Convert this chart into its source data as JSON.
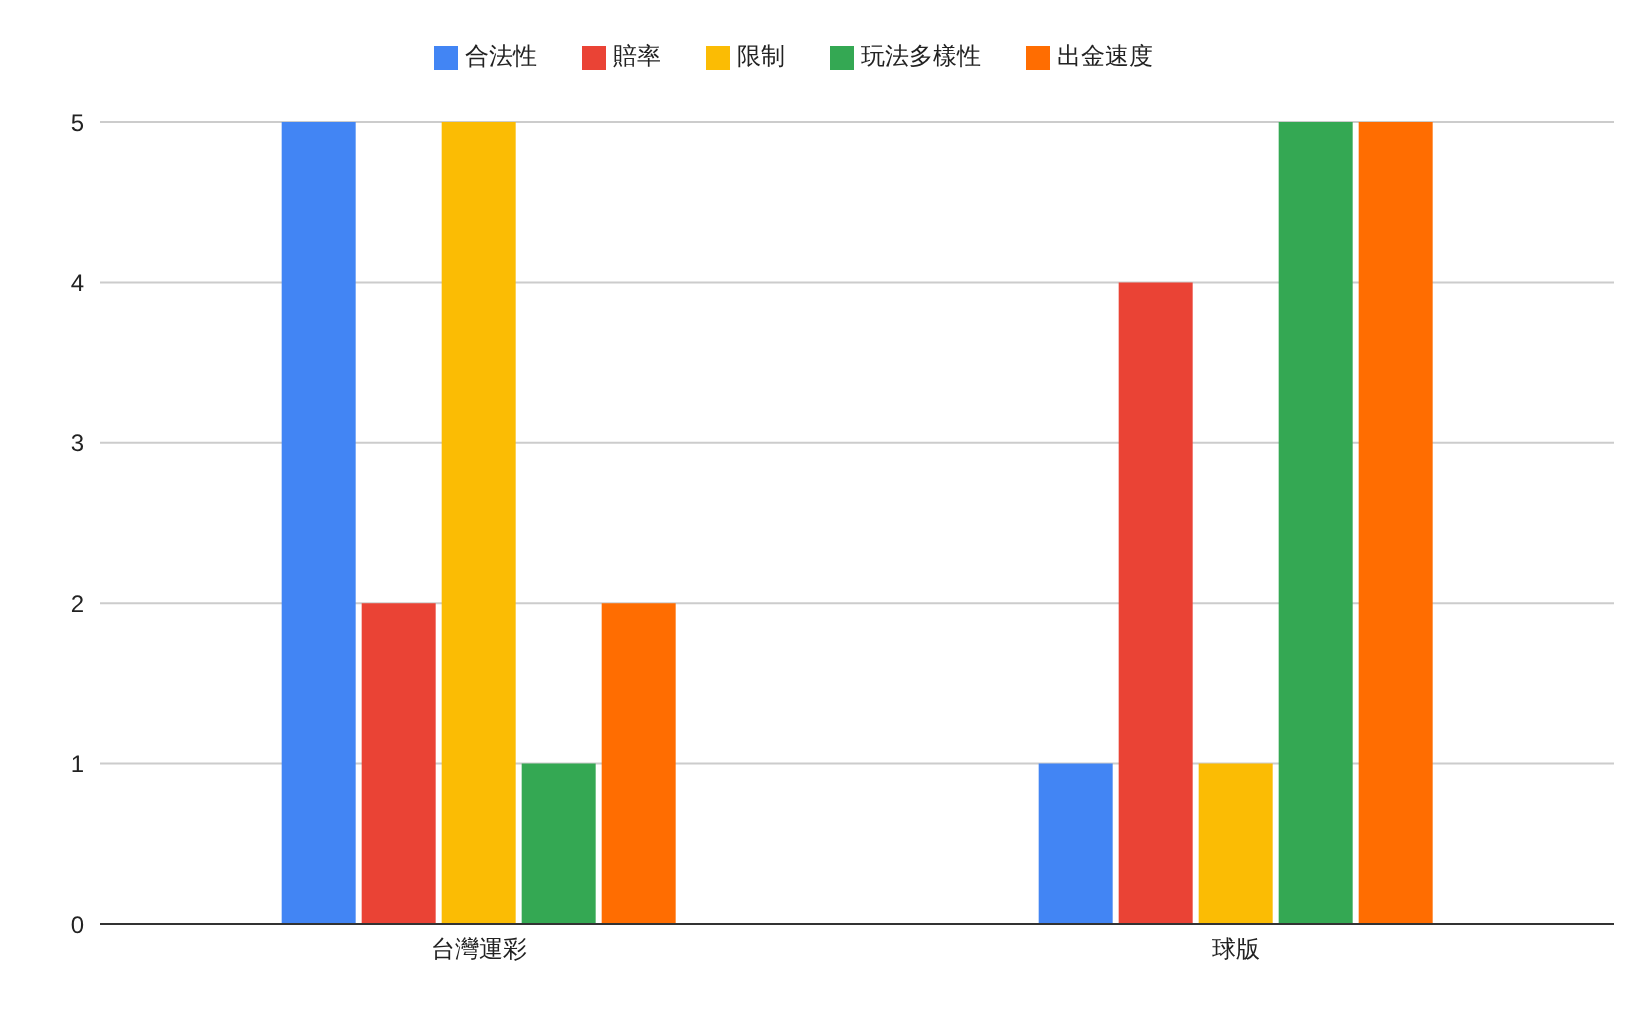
{
  "chart_data": {
    "type": "bar",
    "categories": [
      "台灣運彩",
      "球版"
    ],
    "series": [
      {
        "name": "合法性",
        "color": "#4285f4",
        "values": [
          5,
          1
        ]
      },
      {
        "name": "賠率",
        "color": "#ea4335",
        "values": [
          2,
          4
        ]
      },
      {
        "name": "限制",
        "color": "#fbbc04",
        "values": [
          5,
          1
        ]
      },
      {
        "name": "玩法多樣性",
        "color": "#34a853",
        "values": [
          1,
          5
        ]
      },
      {
        "name": "出金速度",
        "color": "#ff6d01",
        "values": [
          2,
          5
        ]
      }
    ],
    "ylim": [
      0,
      5
    ],
    "yticks": [
      0,
      1,
      2,
      3,
      4,
      5
    ],
    "grid": "y",
    "legend": "top"
  }
}
